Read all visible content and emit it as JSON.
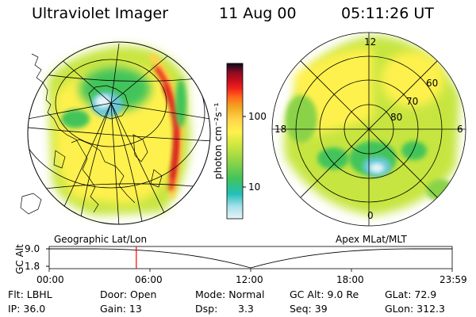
{
  "header": {
    "instrument": "Ultraviolet Imager",
    "date": "11 Aug 00",
    "time": "05:11:26 UT"
  },
  "panels": {
    "left_caption": "Geographic Lat/Lon",
    "right_caption": "Apex MLat/MLT"
  },
  "colorbar": {
    "unit_label": "photon cm⁻²s⁻¹",
    "ticks": [
      "100",
      "10"
    ],
    "colors": [
      "#e6f4f8",
      "#6cc9d8",
      "#21c0b9",
      "#42c45a",
      "#8ad348",
      "#c6e53f",
      "#fff14d",
      "#ffd34a",
      "#f2a521",
      "#ff6c1c",
      "#f0221b",
      "#c40e1c",
      "#8e0c22",
      "#3a0d33",
      "#0b0b1f"
    ]
  },
  "polar_grid": {
    "mlt_labels": [
      "12",
      "18",
      "6",
      "0"
    ],
    "mlat_labels": [
      "60",
      "70",
      "80"
    ]
  },
  "timeline": {
    "axis_label": "GC Alt",
    "alt_ticks": [
      "9.0",
      "1.8"
    ],
    "time_ticks": [
      "00:00",
      "06:00",
      "12:00",
      "18:00",
      "23:59"
    ],
    "marker_time": "05:11:26",
    "marker_color": "#ff0000"
  },
  "footer": {
    "row1": {
      "filter": "Flt: LBHL",
      "door": "Door: Open",
      "mode": "Mode: Normal",
      "gc_alt": "GC Alt: 9.0 Re",
      "glat": "GLat:  72.9"
    },
    "row2": {
      "ip": "IP: 36.0",
      "gain": "Gain: 13",
      "dsp_label": "Dsp:",
      "dsp_value": "3.3",
      "seq": "Seq: 39",
      "glon": "GLon: 312.3"
    }
  }
}
